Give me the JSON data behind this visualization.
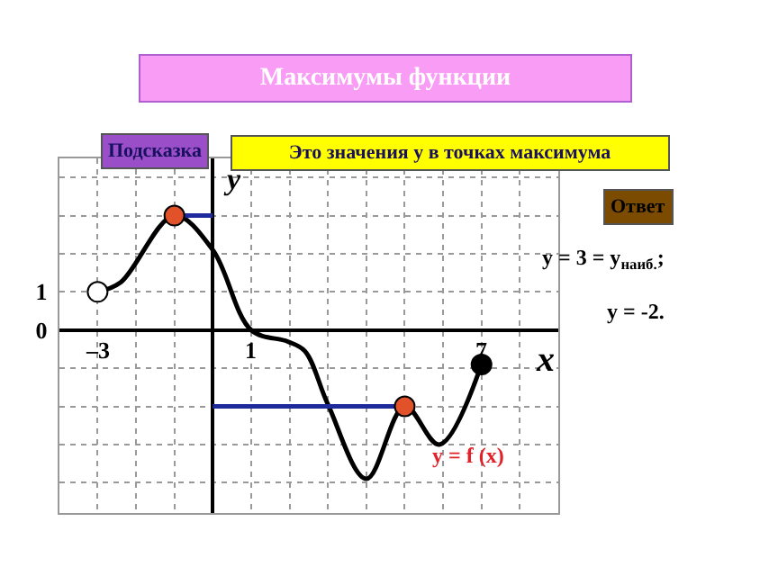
{
  "chart_data": {
    "type": "line",
    "title": "Максимумы функции",
    "xlabel": "x",
    "ylabel": "y",
    "xlim": [
      -4,
      9
    ],
    "ylim": [
      -4.8,
      4.5
    ],
    "xticks": [
      {
        "value": -4,
        "label": null
      },
      {
        "value": -3,
        "label": "–3"
      },
      {
        "value": -2,
        "label": null
      },
      {
        "value": -1,
        "label": null
      },
      {
        "value": 0,
        "label": null
      },
      1,
      {
        "value": 2,
        "label": null
      },
      {
        "value": 3,
        "label": null
      },
      {
        "value": 4,
        "label": null
      },
      {
        "value": 5,
        "label": null
      },
      {
        "value": 6,
        "label": null
      },
      7,
      {
        "value": 8,
        "label": null
      }
    ],
    "yticks": [
      {
        "value": -4,
        "label": null
      },
      {
        "value": -3,
        "label": null
      },
      {
        "value": -2,
        "label": null
      },
      {
        "value": -1,
        "label": null
      },
      0,
      {
        "value": 1,
        "label": "1"
      },
      {
        "value": 2,
        "label": null
      },
      {
        "value": 3,
        "label": null
      },
      {
        "value": 4,
        "label": null
      }
    ],
    "grid": true,
    "marker": "none",
    "line_style": "solid",
    "series": [
      {
        "color": "#000000",
        "x": [
          -3,
          -2.4,
          -1,
          0,
          1,
          1.95,
          2.4,
          3,
          4,
          5,
          5.9,
          7
        ],
        "values": [
          1,
          1.25,
          3,
          2.1,
          0,
          -0.3,
          -0.55,
          -1.95,
          -3.9,
          -2,
          -3,
          -0.9
        ]
      },
      {
        "color": "#1f2a9c",
        "x": [
          -1,
          0
        ],
        "values": [
          3,
          3
        ]
      },
      {
        "color": "#1f2a9c",
        "x": [
          0,
          5
        ],
        "values": [
          -2,
          -2
        ]
      },
      {
        "type": "scatter",
        "marker": "circle",
        "x": [
          -1,
          5
        ],
        "values": [
          3,
          -2
        ],
        "color": "#e2522a"
      },
      {
        "type": "scatter",
        "marker": "circle",
        "x": [
          -3
        ],
        "values": [
          1
        ],
        "color": "#ffffff"
      },
      {
        "type": "scatter",
        "marker": "circle",
        "x": [
          7
        ],
        "values": [
          -0.9
        ],
        "color": "#000000"
      }
    ],
    "annotations": [
      "Подсказка",
      "Это значения y в точках максимума",
      "Ответ",
      "y = 3 = y$_{наиб.}$;",
      "y = -2.",
      "y = f (x)"
    ]
  }
}
